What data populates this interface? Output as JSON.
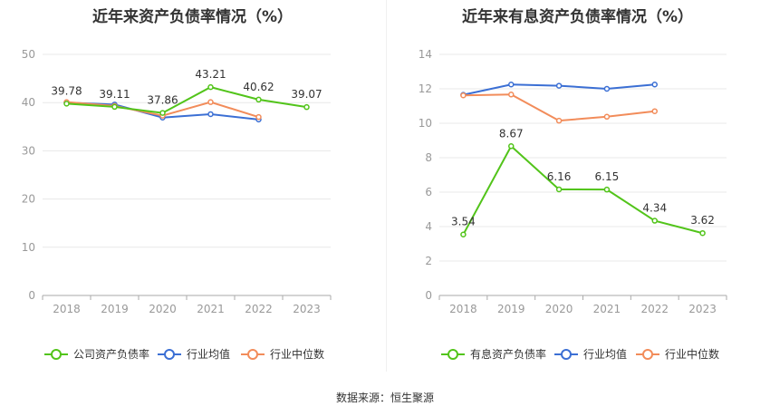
{
  "footer": {
    "label": "数据来源：",
    "source": "恒生聚源"
  },
  "colors": {
    "main": "#52c41a",
    "average": "#3b6fd4",
    "median": "#f28c5a",
    "axis": "#999999",
    "grid": "#e8e8e8"
  },
  "chart_data": [
    {
      "type": "line",
      "title": "近年来资产负债率情况（%）",
      "categories": [
        "2018",
        "2019",
        "2020",
        "2021",
        "2022",
        "2023"
      ],
      "ylim": [
        0,
        50
      ],
      "yticks": [
        0,
        10,
        20,
        30,
        40,
        50
      ],
      "grid": true,
      "legend_position": "bottom",
      "series": [
        {
          "name": "公司资产负债率",
          "color": "#52c41a",
          "show_labels": true,
          "values": [
            39.78,
            39.11,
            37.86,
            43.21,
            40.62,
            39.07
          ]
        },
        {
          "name": "行业均值",
          "color": "#3b6fd4",
          "show_labels": false,
          "values": [
            40.0,
            39.6,
            36.9,
            37.6,
            36.5,
            null
          ]
        },
        {
          "name": "行业中位数",
          "color": "#f28c5a",
          "show_labels": false,
          "values": [
            40.1,
            39.3,
            37.3,
            40.1,
            37.0,
            null
          ]
        }
      ]
    },
    {
      "type": "line",
      "title": "近年来有息资产负债率情况（%）",
      "categories": [
        "2018",
        "2019",
        "2020",
        "2021",
        "2022",
        "2023"
      ],
      "ylim": [
        0,
        14
      ],
      "yticks": [
        0,
        2,
        4,
        6,
        8,
        10,
        12,
        14
      ],
      "grid": true,
      "legend_position": "bottom",
      "series": [
        {
          "name": "有息资产负债率",
          "color": "#52c41a",
          "show_labels": true,
          "values": [
            3.54,
            8.67,
            6.16,
            6.15,
            4.34,
            3.62
          ]
        },
        {
          "name": "行业均值",
          "color": "#3b6fd4",
          "show_labels": false,
          "values": [
            11.65,
            12.25,
            12.18,
            12.0,
            12.25,
            null
          ]
        },
        {
          "name": "行业中位数",
          "color": "#f28c5a",
          "show_labels": false,
          "values": [
            11.62,
            11.67,
            10.15,
            10.38,
            10.7,
            null
          ]
        }
      ]
    }
  ]
}
